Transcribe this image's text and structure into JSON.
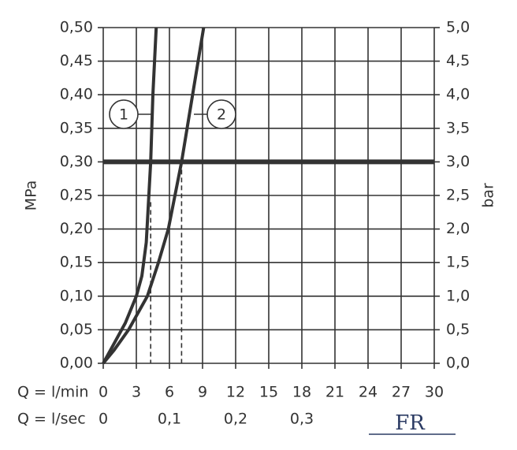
{
  "chart_data": {
    "type": "line",
    "y_label": "MPa",
    "y2_label": "bar",
    "x_row_label": "Q = l/min",
    "x2_row_label": "Q = l/sec",
    "logo": "FR",
    "color": "#333333",
    "xlim": [
      0,
      30
    ],
    "xticks": [
      0,
      3,
      6,
      9,
      12,
      15,
      18,
      21,
      24,
      27,
      30
    ],
    "x2lim": [
      0,
      0.5
    ],
    "x2ticks": [
      0,
      {
        "value": 0.1,
        "label": "0,1"
      },
      {
        "value": 0.2,
        "label": "0,2"
      },
      {
        "value": 0.3,
        "label": "0,3"
      }
    ],
    "ylim": [
      0,
      0.5
    ],
    "yticks": [
      {
        "value": 0,
        "label": "0,00"
      },
      {
        "value": 0.05,
        "label": "0,05"
      },
      {
        "value": 0.1,
        "label": "0,10"
      },
      {
        "value": 0.15,
        "label": "0,15"
      },
      {
        "value": 0.2,
        "label": "0,20"
      },
      {
        "value": 0.25,
        "label": "0,25"
      },
      {
        "value": 0.3,
        "label": "0,30"
      },
      {
        "value": 0.35,
        "label": "0,35"
      },
      {
        "value": 0.4,
        "label": "0,40"
      },
      {
        "value": 0.45,
        "label": "0,45"
      },
      {
        "value": 0.5,
        "label": "0,50"
      }
    ],
    "y2lim": [
      0,
      5
    ],
    "y2ticks": [
      {
        "value": 0,
        "label": "0,0"
      },
      {
        "value": 0.5,
        "label": "0,5"
      },
      {
        "value": 1,
        "label": "1,0"
      },
      {
        "value": 1.5,
        "label": "1,5"
      },
      {
        "value": 2,
        "label": "2,0"
      },
      {
        "value": 2.5,
        "label": "2,5"
      },
      {
        "value": 3,
        "label": "3,0"
      },
      {
        "value": 3.5,
        "label": "3,5"
      },
      {
        "value": 4,
        "label": "4,0"
      },
      {
        "value": 4.5,
        "label": "4,5"
      },
      {
        "value": 5,
        "label": "5,0"
      }
    ],
    "grid": true,
    "reference_line": 0.3,
    "series": [
      {
        "name": "1",
        "x": [
          0,
          1,
          2,
          3,
          3.5,
          3.9,
          4.1,
          4.3,
          4.5,
          4.8
        ],
        "values": [
          0,
          0.03,
          0.06,
          0.1,
          0.13,
          0.18,
          0.24,
          0.3,
          0.4,
          0.5
        ]
      },
      {
        "name": "2",
        "x": [
          0,
          1,
          2.3,
          4,
          5,
          5.9,
          6.5,
          7.1,
          8.1,
          9.1
        ],
        "values": [
          0,
          0.02,
          0.05,
          0.1,
          0.15,
          0.2,
          0.25,
          0.3,
          0.4,
          0.5
        ]
      }
    ],
    "markers": [
      {
        "x": 4.3,
        "y": 0.24
      },
      {
        "x": 7.1,
        "y": 0.3
      }
    ]
  }
}
